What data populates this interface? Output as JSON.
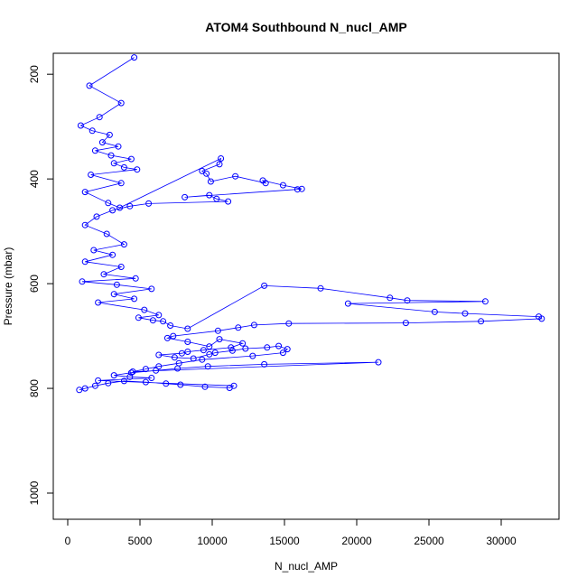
{
  "chart_data": {
    "type": "scatter",
    "title": "ATOM4 Southbound N_nucl_AMP",
    "xlabel": "N_nucl_AMP",
    "ylabel": "Pressure (mbar)",
    "xlim": [
      -1000,
      34000
    ],
    "ylim": [
      1050,
      160
    ],
    "y_reversed": true,
    "x_ticks": [
      0,
      5000,
      10000,
      15000,
      20000,
      25000,
      30000
    ],
    "y_ticks": [
      200,
      400,
      600,
      800,
      1000
    ],
    "grid": false,
    "legend": "none",
    "color": "#0000ff",
    "series": [
      {
        "x": [
          4600,
          1500,
          3700,
          2200,
          900,
          1700,
          2900,
          2400,
          3500,
          1900,
          3000,
          4400,
          3200,
          3900,
          4800,
          1600,
          3700,
          1200,
          2800,
          3600,
          10600,
          10500,
          9300,
          9600,
          9900,
          11600,
          13700,
          13500,
          14900,
          16200,
          15900,
          8100,
          9800,
          10300,
          11100,
          5600,
          4300,
          3100,
          2000,
          1200,
          2700,
          3900,
          1800,
          3100,
          1200,
          3700,
          2500,
          4700,
          1000,
          3400,
          5800,
          3200,
          4600,
          2100,
          5300,
          6300,
          4900,
          5900,
          6600,
          7100,
          8300,
          13600,
          17500,
          22300,
          23500,
          28900,
          19400,
          25400,
          27500,
          32600,
          32800,
          28600,
          23400,
          15300,
          12900,
          11800,
          10400,
          7300,
          6900,
          8300,
          9800,
          10500,
          12100,
          11300,
          9400,
          8300,
          7900,
          6300,
          7400,
          8700,
          9800,
          10200,
          11400,
          12300,
          13800,
          14600,
          15200,
          14900,
          12800,
          9300,
          7700,
          6300,
          5400,
          4500,
          21500,
          13600,
          9700,
          7600,
          6100,
          4400,
          3200,
          4300,
          5800,
          2100,
          11500,
          11200,
          9500,
          7800,
          6800,
          5400,
          3900,
          2800,
          1900,
          1200,
          800
        ],
        "y": [
          168,
          222,
          255,
          282,
          298,
          308,
          316,
          330,
          338,
          346,
          355,
          362,
          370,
          378,
          382,
          392,
          408,
          425,
          446,
          455,
          361,
          372,
          385,
          390,
          405,
          395,
          408,
          403,
          412,
          419,
          420,
          435,
          431,
          438,
          443,
          447,
          452,
          460,
          472,
          488,
          505,
          525,
          536,
          545,
          558,
          568,
          582,
          590,
          596,
          602,
          610,
          620,
          629,
          636,
          650,
          660,
          665,
          670,
          672,
          680,
          686,
          604,
          609,
          627,
          632,
          634,
          638,
          654,
          657,
          663,
          667,
          672,
          675,
          676,
          679,
          684,
          690,
          700,
          704,
          711,
          720,
          706,
          714,
          722,
          727,
          730,
          733,
          736,
          741,
          743,
          735,
          732,
          728,
          724,
          722,
          719,
          725,
          732,
          738,
          745,
          752,
          758,
          763,
          768,
          750,
          754,
          758,
          762,
          766,
          770,
          775,
          778,
          780,
          785,
          795,
          799,
          797,
          793,
          791,
          788,
          786,
          790,
          795,
          800,
          803
        ]
      }
    ]
  }
}
